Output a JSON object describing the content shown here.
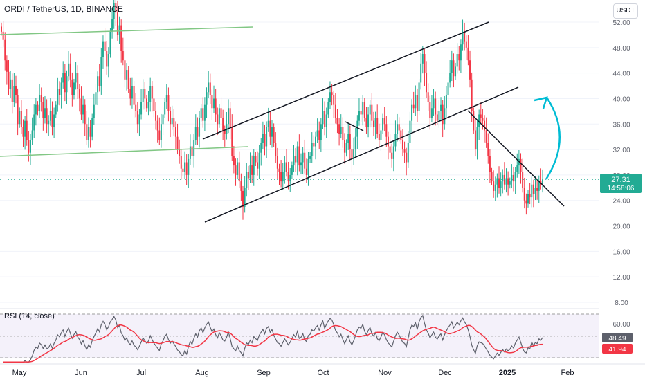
{
  "header": {
    "symbol": "ORDI / TetherUS, 1D, BINANCE",
    "currency": "USDT"
  },
  "price_panel": {
    "y_ticks": [
      "52.00",
      "48.00",
      "44.00",
      "40.00",
      "36.00",
      "32.00",
      "28.00",
      "24.00",
      "20.00",
      "16.00",
      "12.00",
      "8.00"
    ],
    "last_price": "27.31",
    "countdown": "14:58:06"
  },
  "rsi_panel": {
    "title": "RSI (14, close)",
    "y_ticks": [
      "60.00"
    ],
    "rsi_value": "48.49",
    "rsi_ma_value": "41.94"
  },
  "x_axis": {
    "labels": [
      "May",
      "Jun",
      "Jul",
      "Aug",
      "Sep",
      "Oct",
      "Nov",
      "Dec",
      "2025",
      "Feb"
    ]
  },
  "colors": {
    "up": "#22ab94",
    "down": "#f23645",
    "trendline": "#131722",
    "support_green": "#81c784",
    "arrow": "#00bcd4",
    "rsi_line": "#5d606b",
    "rsi_ma": "#f23645",
    "rsi_band": "#ede7f6",
    "last_price_bg": "#22ab94"
  },
  "chart_data": {
    "type": "candlestick",
    "price_range": [
      8,
      52
    ],
    "closes": [
      50.5,
      49.2,
      46.0,
      44.2,
      41.5,
      43.0,
      39.5,
      42.0,
      40.5,
      36.0,
      38.0,
      35.5,
      34.0,
      36.5,
      33.5,
      31.5,
      33.5,
      35.0,
      37.5,
      39.0,
      38.0,
      40.5,
      39.5,
      37.0,
      38.5,
      36.0,
      36.5,
      38.0,
      35.5,
      37.5,
      39.0,
      41.5,
      40.5,
      42.5,
      44.0,
      41.0,
      43.5,
      45.5,
      43.0,
      40.5,
      42.5,
      44.0,
      41.5,
      40.0,
      37.5,
      39.0,
      36.0,
      33.5,
      35.5,
      34.0,
      37.0,
      39.0,
      41.0,
      43.5,
      42.0,
      46.5,
      49.0,
      47.5,
      45.0,
      47.0,
      50.5,
      52.5,
      55.0,
      53.5,
      50.0,
      51.5,
      47.5,
      46.0,
      43.0,
      44.5,
      41.5,
      40.0,
      42.0,
      39.0,
      38.0,
      36.0,
      37.5,
      39.5,
      41.5,
      40.0,
      38.5,
      39.5,
      42.0,
      40.0,
      38.0,
      36.5,
      35.0,
      33.5,
      36.0,
      37.5,
      39.5,
      40.5,
      38.0,
      36.0,
      37.0,
      35.5,
      34.0,
      32.0,
      31.0,
      29.0,
      28.5,
      30.0,
      28.0,
      30.5,
      32.5,
      31.0,
      33.5,
      35.5,
      34.0,
      37.0,
      38.5,
      36.5,
      39.0,
      41.0,
      42.5,
      40.5,
      38.5,
      40.0,
      37.5,
      36.0,
      38.5,
      37.0,
      35.0,
      34.5,
      36.0,
      38.5,
      35.5,
      31.0,
      29.5,
      28.0,
      30.0,
      27.0,
      25.5,
      23.0,
      26.0,
      28.5,
      27.5,
      29.5,
      28.0,
      31.0,
      30.0,
      29.0,
      31.5,
      33.0,
      34.5,
      32.5,
      35.5,
      36.5,
      34.0,
      35.5,
      33.0,
      31.0,
      29.0,
      28.5,
      27.0,
      28.5,
      30.0,
      28.5,
      27.0,
      28.0,
      29.5,
      31.0,
      30.0,
      32.5,
      29.5,
      30.0,
      31.5,
      29.0,
      28.0,
      30.5,
      31.0,
      33.0,
      32.5,
      34.0,
      35.0,
      33.5,
      36.0,
      38.0,
      35.5,
      37.5,
      39.5,
      41.0,
      40.5,
      39.0,
      37.0,
      36.0,
      34.5,
      35.5,
      33.5,
      31.5,
      33.0,
      34.5,
      32.0,
      30.5,
      32.0,
      34.0,
      36.5,
      38.0,
      37.5,
      39.5,
      37.0,
      35.5,
      37.5,
      39.0,
      36.5,
      35.5,
      37.0,
      34.5,
      33.5,
      35.0,
      37.0,
      36.0,
      34.0,
      32.5,
      31.5,
      30.5,
      32.5,
      34.5,
      36.0,
      35.0,
      33.5,
      32.0,
      31.5,
      30.0,
      33.0,
      36.5,
      39.0,
      38.5,
      40.5,
      38.0,
      42.5,
      45.5,
      47.0,
      44.0,
      41.0,
      39.5,
      37.0,
      38.5,
      40.0,
      37.5,
      36.5,
      38.0,
      39.0,
      36.0,
      38.5,
      40.5,
      42.5,
      44.0,
      46.0,
      43.5,
      45.0,
      47.0,
      46.0,
      48.5,
      50.5,
      49.0,
      48.0,
      46.0,
      43.0,
      38.0,
      35.0,
      32.0,
      35.5,
      37.5,
      37.0,
      36.5,
      35.0,
      33.0,
      31.0,
      28.5,
      27.0,
      25.5,
      26.5,
      27.5,
      26.0,
      27.0,
      28.0,
      26.5,
      27.5,
      26.5,
      27.0,
      28.0,
      27.0,
      28.5,
      29.5,
      30.5,
      28.5,
      26.0,
      24.0,
      23.5,
      25.0,
      24.5,
      26.5,
      25.0,
      26.0,
      25.5,
      27.0,
      26.5,
      27.31
    ],
    "rsi": {
      "range": [
        0,
        100
      ],
      "last": 48.49,
      "ma_last": 41.94
    },
    "y_axis_price_ticks": [
      52,
      48,
      44,
      40,
      36,
      32,
      28,
      24,
      20,
      16,
      12,
      8
    ],
    "x_labels": [
      "May",
      "Jun",
      "Jul",
      "Aug",
      "Sep",
      "Oct",
      "Nov",
      "Dec",
      "2025",
      "Feb"
    ],
    "last_price": 27.31
  }
}
